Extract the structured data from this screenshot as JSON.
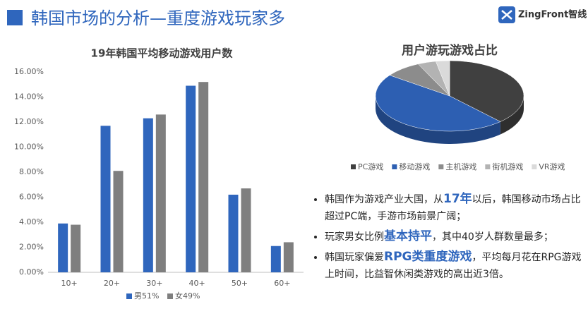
{
  "header": {
    "title": "韩国市场的分析—重度游戏玩家多",
    "logo": "ZingFront智线"
  },
  "chart_data": [
    {
      "type": "bar",
      "title": "19年韩国平均移动游戏用户数",
      "categories": [
        "10+",
        "20+",
        "30+",
        "40+",
        "50+",
        "60+"
      ],
      "series": [
        {
          "name": "男51%",
          "color": "#2f66bd",
          "values": [
            3.9,
            11.7,
            12.3,
            14.9,
            6.2,
            2.1
          ]
        },
        {
          "name": "女49%",
          "color": "#7f7f7f",
          "values": [
            3.8,
            8.1,
            12.6,
            15.2,
            6.7,
            2.4
          ]
        }
      ],
      "ylim": [
        0,
        16
      ],
      "yticks": [
        {
          "value": 0,
          "label": "0.00%"
        },
        {
          "value": 2,
          "label": "2.00%"
        },
        {
          "value": 4,
          "label": "4.00%"
        },
        {
          "value": 6,
          "label": "6.00%"
        },
        {
          "value": 8,
          "label": "8.00%"
        },
        {
          "value": 10,
          "label": "10.00%"
        },
        {
          "value": 12,
          "label": "12.00%"
        },
        {
          "value": 14,
          "label": "14.00%"
        },
        {
          "value": 16,
          "label": "16.00%"
        }
      ],
      "grid": false,
      "legend": "bottom"
    },
    {
      "type": "pie",
      "title": "用户游玩游戏占比",
      "categories": [
        "PC游戏",
        "移动游戏",
        "主机游戏",
        "街机游戏",
        "VR游戏"
      ],
      "values": [
        38,
        47,
        8,
        4,
        3
      ],
      "colors": [
        "#404040",
        "#2d5fb2",
        "#8c8c8c",
        "#b3b3b3",
        "#dadada"
      ],
      "legend": "bottom"
    }
  ],
  "bullets": [
    [
      "韩国作为游戏产业大国，从",
      "17年",
      "以后，韩国移动市场占比超过PC端，手游市场前景广阔；"
    ],
    [
      "玩家男女比例",
      "基本持平",
      "，其中40岁人群数量最多；"
    ],
    [
      "韩国玩家偏爱",
      "RPG类重度游戏",
      "，平均每月花在RPG游戏上时间，比益智休闲类游戏的高出近3倍。"
    ]
  ]
}
